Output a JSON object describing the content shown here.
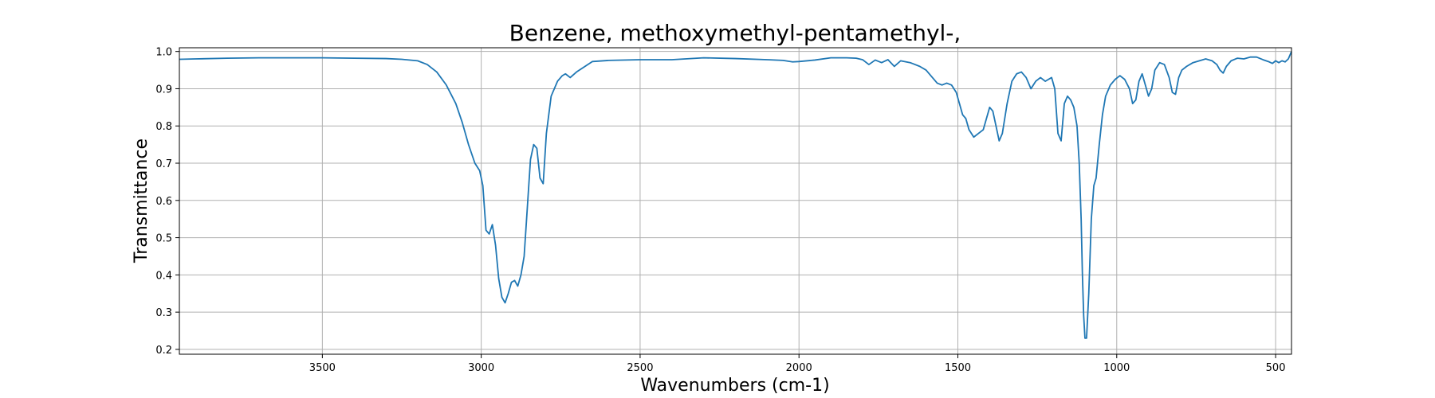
{
  "chart_data": {
    "type": "line",
    "title": "Benzene, methoxymethyl-pentamethyl-,",
    "xlabel": "Wavenumbers (cm-1)",
    "ylabel": "Transmittance",
    "xlim": [
      3950,
      450
    ],
    "ylim": [
      0.187,
      1.01
    ],
    "x_ticks": [
      3500,
      3000,
      2500,
      2000,
      1500,
      1000,
      500
    ],
    "y_ticks": [
      0.2,
      0.3,
      0.4,
      0.5,
      0.6,
      0.7,
      0.8,
      0.9,
      1.0
    ],
    "x_tick_labels": [
      "3500",
      "3000",
      "2500",
      "2000",
      "1500",
      "1000",
      "500"
    ],
    "y_tick_labels": [
      "0.2",
      "0.3",
      "0.4",
      "0.5",
      "0.6",
      "0.7",
      "0.8",
      "0.9",
      "1.0"
    ],
    "grid": true,
    "line_color": "#1f77b4",
    "series": [
      {
        "x": [
          3950,
          3900,
          3800,
          3700,
          3600,
          3500,
          3400,
          3300,
          3250,
          3200,
          3170,
          3140,
          3110,
          3080,
          3060,
          3040,
          3020,
          3005,
          2995,
          2985,
          2975,
          2965,
          2955,
          2945,
          2935,
          2925,
          2915,
          2905,
          2895,
          2885,
          2875,
          2865,
          2855,
          2845,
          2835,
          2825,
          2815,
          2805,
          2795,
          2780,
          2760,
          2745,
          2735,
          2720,
          2700,
          2650,
          2600,
          2500,
          2400,
          2300,
          2200,
          2100,
          2050,
          2020,
          2000,
          1950,
          1900,
          1850,
          1820,
          1800,
          1780,
          1760,
          1740,
          1720,
          1700,
          1680,
          1650,
          1620,
          1600,
          1580,
          1565,
          1550,
          1535,
          1520,
          1505,
          1495,
          1485,
          1475,
          1465,
          1450,
          1435,
          1420,
          1410,
          1400,
          1390,
          1380,
          1370,
          1360,
          1345,
          1330,
          1315,
          1300,
          1285,
          1270,
          1255,
          1240,
          1225,
          1215,
          1205,
          1195,
          1185,
          1175,
          1165,
          1155,
          1145,
          1135,
          1125,
          1118,
          1112,
          1108,
          1104,
          1100,
          1095,
          1088,
          1080,
          1072,
          1065,
          1055,
          1045,
          1035,
          1020,
          1005,
          990,
          975,
          960,
          950,
          940,
          930,
          920,
          910,
          900,
          890,
          880,
          865,
          850,
          835,
          825,
          815,
          805,
          795,
          780,
          760,
          740,
          720,
          700,
          685,
          675,
          665,
          655,
          640,
          620,
          600,
          580,
          560,
          540,
          520,
          510,
          500,
          490,
          480,
          470,
          460,
          455,
          450
        ],
        "y": [
          0.979,
          0.98,
          0.982,
          0.983,
          0.983,
          0.983,
          0.982,
          0.981,
          0.979,
          0.975,
          0.965,
          0.945,
          0.91,
          0.86,
          0.81,
          0.75,
          0.7,
          0.68,
          0.64,
          0.52,
          0.51,
          0.535,
          0.48,
          0.39,
          0.34,
          0.325,
          0.35,
          0.38,
          0.385,
          0.37,
          0.4,
          0.45,
          0.58,
          0.71,
          0.75,
          0.74,
          0.66,
          0.645,
          0.78,
          0.88,
          0.92,
          0.935,
          0.94,
          0.93,
          0.945,
          0.973,
          0.976,
          0.978,
          0.978,
          0.983,
          0.981,
          0.978,
          0.976,
          0.972,
          0.973,
          0.977,
          0.983,
          0.983,
          0.982,
          0.978,
          0.965,
          0.977,
          0.97,
          0.978,
          0.96,
          0.975,
          0.97,
          0.96,
          0.95,
          0.93,
          0.915,
          0.91,
          0.915,
          0.91,
          0.89,
          0.86,
          0.83,
          0.82,
          0.79,
          0.77,
          0.78,
          0.79,
          0.82,
          0.85,
          0.84,
          0.8,
          0.76,
          0.78,
          0.86,
          0.92,
          0.94,
          0.945,
          0.93,
          0.9,
          0.92,
          0.93,
          0.92,
          0.925,
          0.93,
          0.9,
          0.78,
          0.76,
          0.86,
          0.88,
          0.87,
          0.85,
          0.8,
          0.7,
          0.55,
          0.4,
          0.29,
          0.23,
          0.23,
          0.35,
          0.55,
          0.64,
          0.66,
          0.75,
          0.83,
          0.88,
          0.91,
          0.925,
          0.935,
          0.925,
          0.9,
          0.86,
          0.87,
          0.92,
          0.94,
          0.91,
          0.88,
          0.9,
          0.95,
          0.97,
          0.965,
          0.93,
          0.89,
          0.885,
          0.93,
          0.95,
          0.96,
          0.97,
          0.975,
          0.98,
          0.975,
          0.965,
          0.95,
          0.942,
          0.96,
          0.975,
          0.982,
          0.98,
          0.985,
          0.985,
          0.978,
          0.972,
          0.968,
          0.975,
          0.97,
          0.975,
          0.972,
          0.98,
          0.99,
          1.0
        ]
      }
    ]
  }
}
